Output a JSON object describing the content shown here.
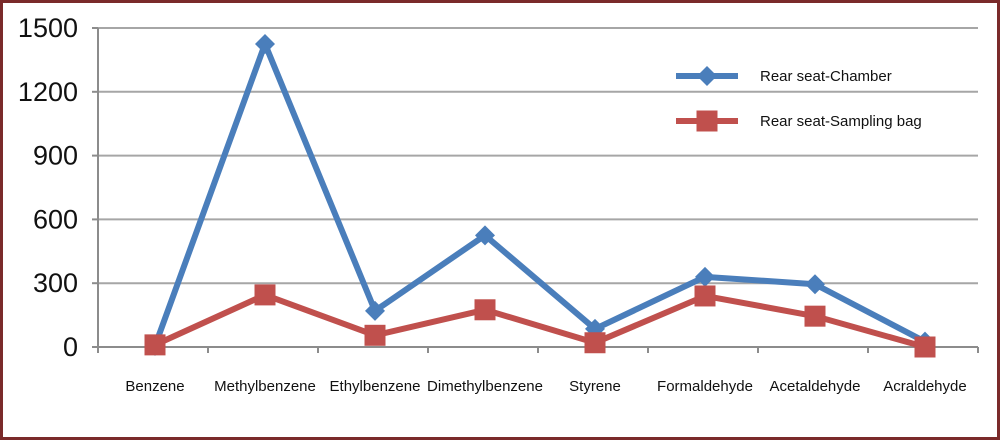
{
  "chart_data": {
    "type": "line",
    "title": "",
    "xlabel": "",
    "ylabel": "",
    "ylim": [
      0,
      1500
    ],
    "yticks": [
      0,
      300,
      600,
      900,
      1200,
      1500
    ],
    "ytick_labels": [
      "0",
      "300",
      "600",
      "900",
      "1200",
      "1500"
    ],
    "categories": [
      "Benzene",
      "Methylbenzene",
      "Ethylbenzene",
      "Dimethylbenzene",
      "Styrene",
      "Formaldehyde",
      "Acetaldehyde",
      "Acraldehyde"
    ],
    "grid": "horizontal",
    "legend_position": "top-right",
    "series": [
      {
        "name": "Rear seat-Chamber",
        "values": [
          5,
          1425,
          170,
          525,
          85,
          330,
          295,
          25
        ],
        "color": "#4a7ebb",
        "marker": "diamond"
      },
      {
        "name": "Rear seat-Sampling bag",
        "values": [
          10,
          245,
          55,
          175,
          20,
          240,
          145,
          0
        ],
        "color": "#c0504d",
        "marker": "square"
      }
    ]
  }
}
